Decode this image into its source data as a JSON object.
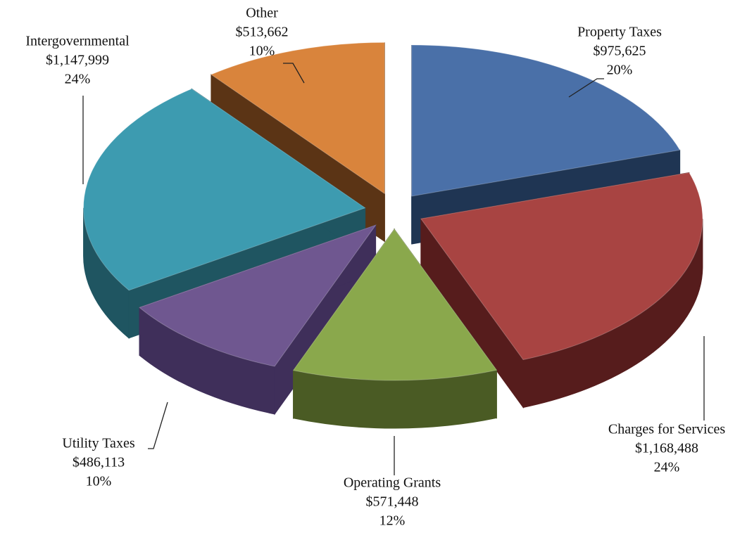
{
  "chart_data": {
    "type": "pie",
    "categories": [
      "Property Taxes",
      "Charges for Services",
      "Operating Grants",
      "Utility Taxes",
      "Intergovernmental",
      "Other"
    ],
    "values": [
      975625,
      1168488,
      571448,
      486113,
      1147999,
      513662
    ],
    "value_labels": [
      "$975,625",
      "$1,168,488",
      "$571,448",
      "$486,113",
      "$1,147,999",
      "$513,662"
    ],
    "percentages": [
      20,
      24,
      12,
      10,
      24,
      10
    ],
    "percentage_labels": [
      "20%",
      "24%",
      "12%",
      "10%",
      "24%",
      "10%"
    ],
    "colors": [
      "#4a70a8",
      "#a84442",
      "#8aa84c",
      "#6f5790",
      "#3d9bb0",
      "#d9843c"
    ],
    "side_colors": [
      "#1f3553",
      "#561c1c",
      "#4a5b24",
      "#3f2f5a",
      "#1f5561",
      "#5b3415"
    ]
  }
}
